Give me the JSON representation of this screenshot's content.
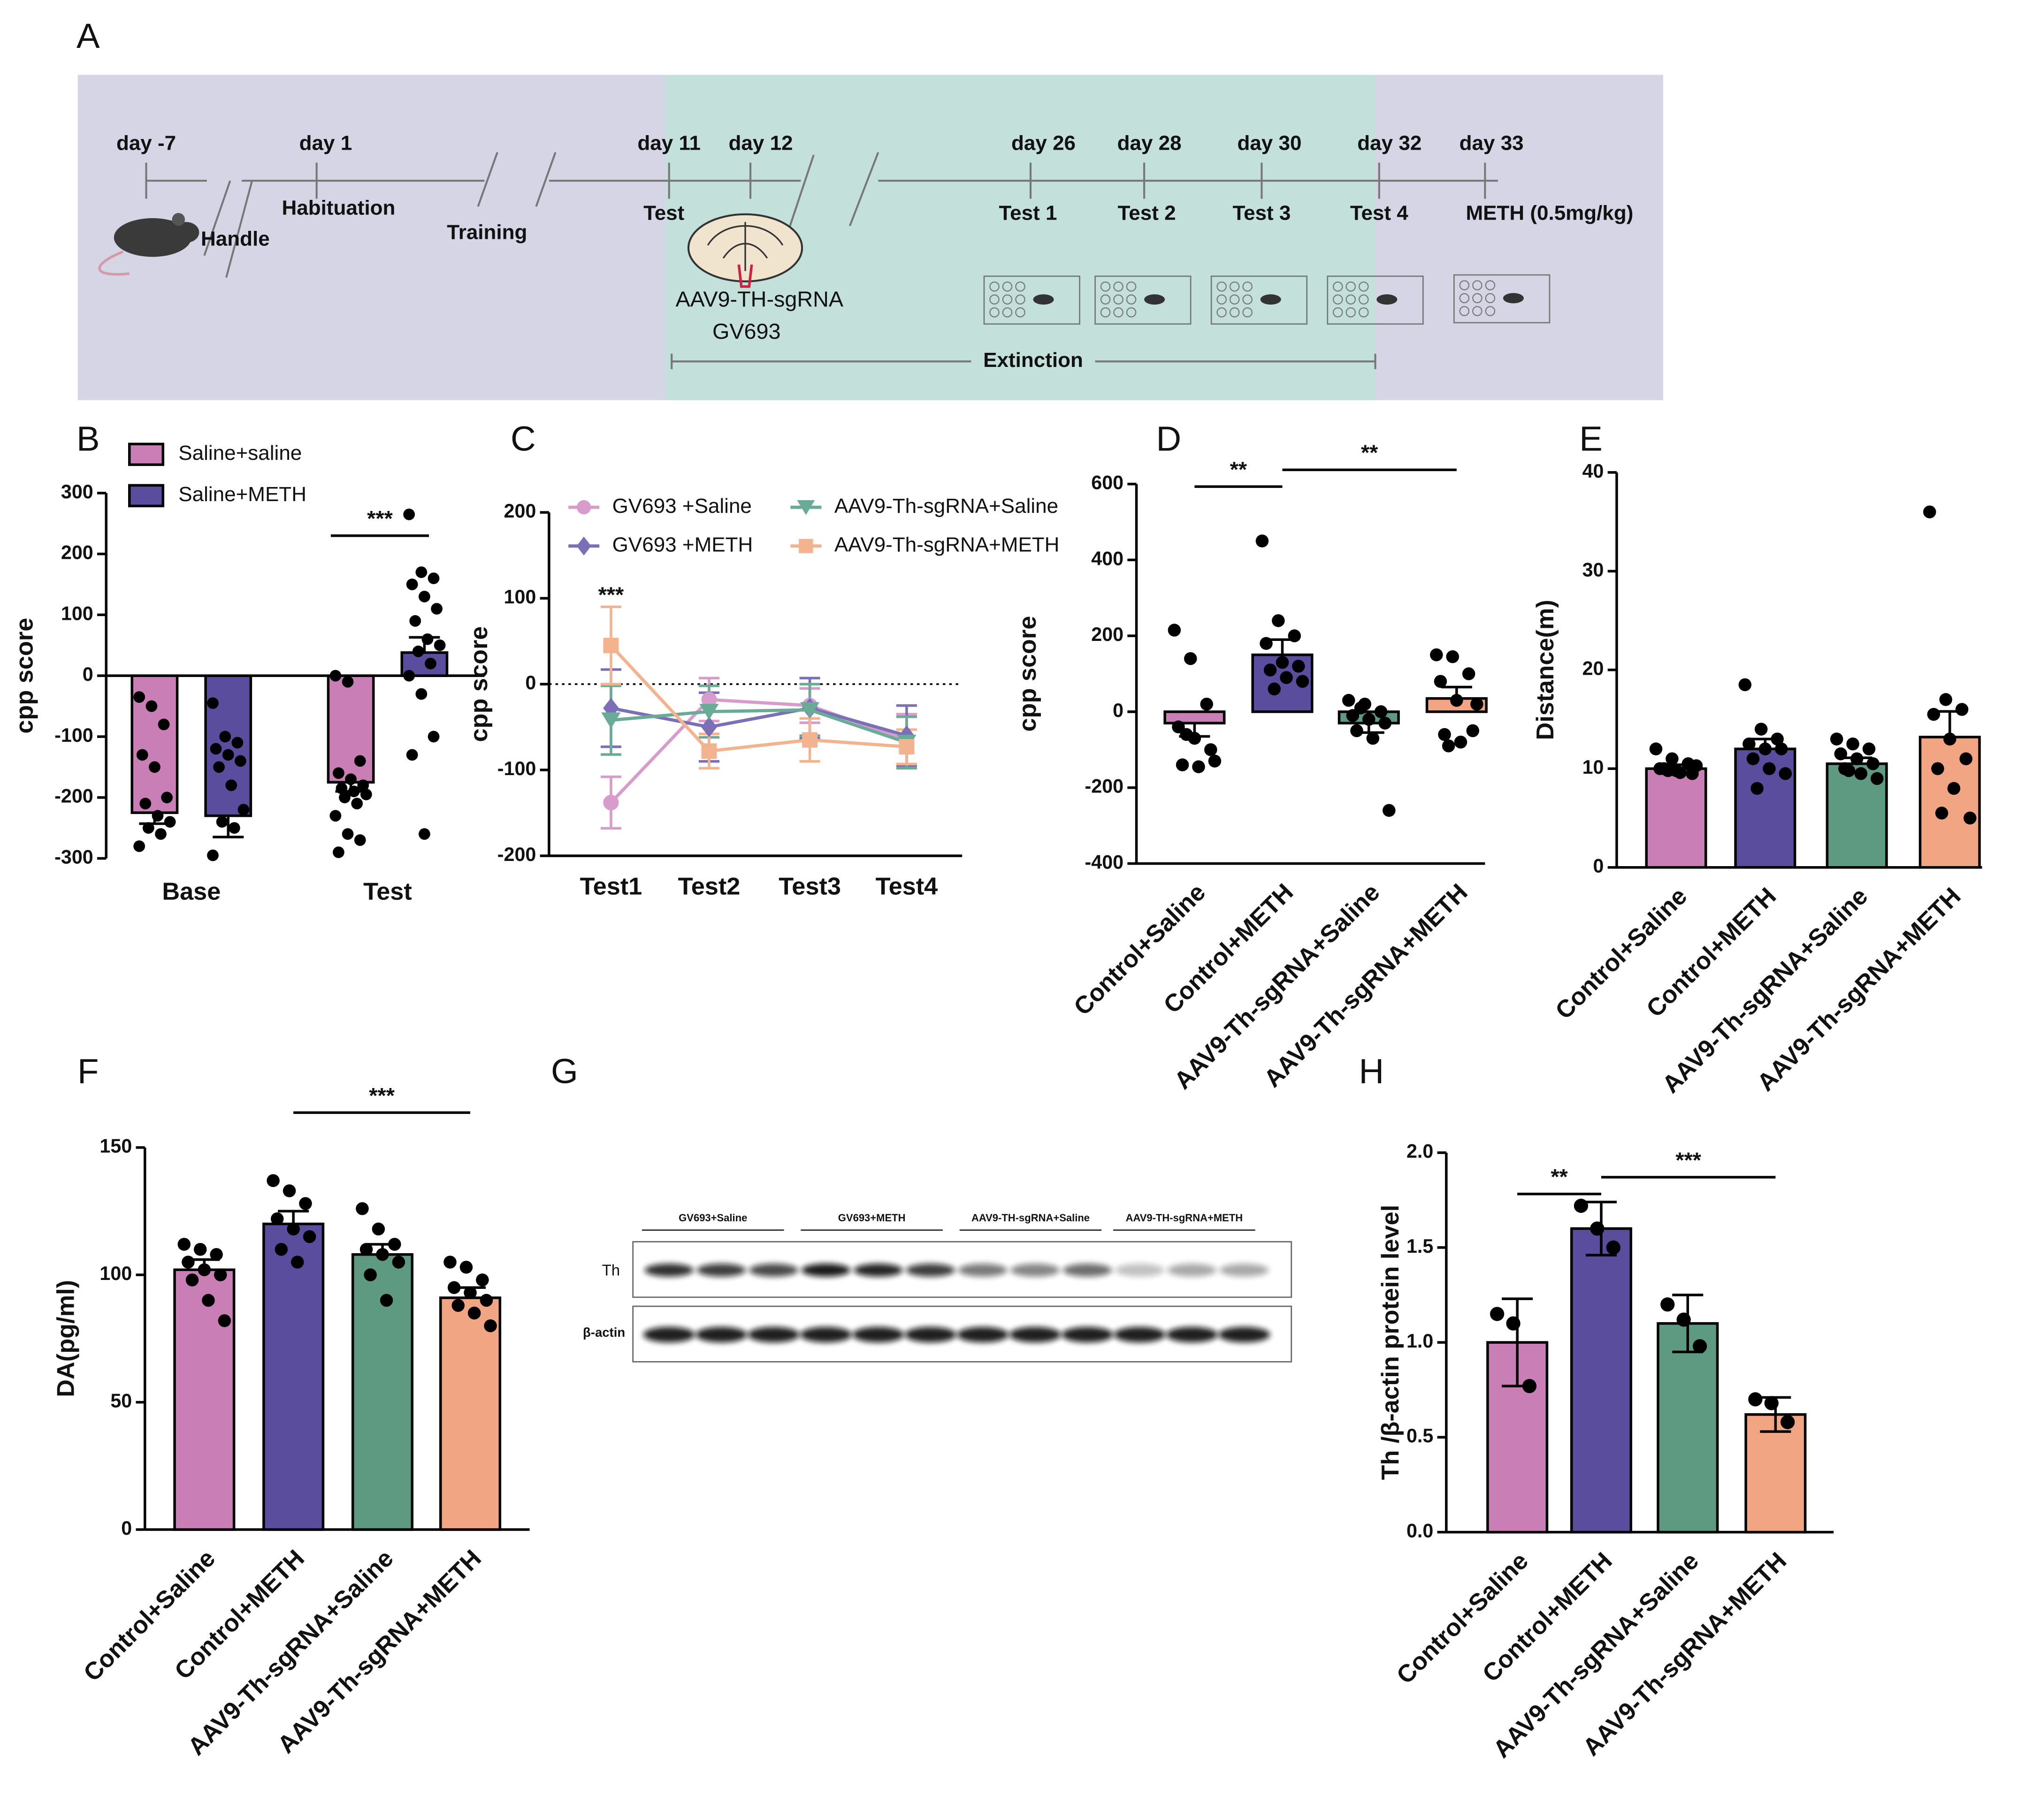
{
  "panel_labels": [
    "A",
    "B",
    "C",
    "D",
    "E",
    "F",
    "G",
    "H"
  ],
  "timeline": {
    "days": [
      "day -7",
      "day 1",
      "day 11",
      "day 12",
      "day 26",
      "day 28",
      "day 30",
      "day 32",
      "day 33"
    ],
    "events": [
      "Handle",
      "Habituation",
      "Training",
      "Test",
      "Test 1",
      "Test 2",
      "Test 3",
      "Test 4",
      "METH (0.5mg/kg)"
    ],
    "injection": [
      "AAV9-TH-sgRNA",
      "GV693"
    ],
    "phase": "Extinction"
  },
  "blot": {
    "groups": [
      "GV693+Saline",
      "GV693+METH",
      "AAV9-TH-sgRNA+Saline",
      "AAV9-TH-sgRNA+METH"
    ],
    "rows": [
      "Th",
      "β-actin"
    ]
  },
  "chart_data": [
    {
      "type": "bar",
      "ylabel": "cpp score",
      "categories": [
        "Base",
        "Test"
      ],
      "x_axis_at_zero": true,
      "series": [
        {
          "name": "Saline+saline",
          "color": "#c97fb6",
          "values": [
            -225,
            -175
          ],
          "errors": [
            18,
            15
          ],
          "points": [
            [
              -35,
              -50,
              -80,
              -130,
              -150,
              -200,
              -210,
              -230,
              -240,
              -250,
              -260,
              -280
            ],
            [
              0,
              -10,
              -140,
              -160,
              -170,
              -180,
              -185,
              -190,
              -195,
              -200,
              -210,
              -230,
              -260,
              -270,
              -290
            ]
          ]
        },
        {
          "name": "Saline+METH",
          "color": "#5a4d9d",
          "values": [
            -230,
            38
          ],
          "errors": [
            35,
            25
          ],
          "points": [
            [
              -45,
              -100,
              -110,
              -120,
              -130,
              -140,
              -150,
              -180,
              -220,
              -240,
              -250,
              -295
            ],
            [
              265,
              170,
              160,
              150,
              130,
              110,
              90,
              60,
              50,
              40,
              20,
              0,
              -30,
              -100,
              -130,
              -260
            ]
          ]
        }
      ],
      "ylim": [
        -300,
        300
      ],
      "yticks": [
        -300,
        -200,
        -100,
        0,
        100,
        200,
        300
      ],
      "annotations": [
        {
          "text": "***",
          "category": "Test"
        }
      ]
    },
    {
      "type": "line",
      "ylabel": "cpp score",
      "categories": [
        "Test1",
        "Test2",
        "Test3",
        "Test4"
      ],
      "zero_line": "dotted",
      "series": [
        {
          "name": "GV693 +Saline",
          "color": "#d79ccb",
          "marker": "circle",
          "values": [
            -138,
            -18,
            -25,
            -65
          ],
          "errors": [
            30,
            25,
            20,
            30
          ]
        },
        {
          "name": "GV693 +METH",
          "color": "#7b6fb7",
          "marker": "diamond",
          "values": [
            -28,
            -50,
            -28,
            -60
          ],
          "errors": [
            45,
            40,
            35,
            35
          ]
        },
        {
          "name": "AAV9-Th-sgRNA+Saline",
          "color": "#6aab98",
          "marker": "triangle-down",
          "values": [
            -42,
            -32,
            -30,
            -68
          ],
          "errors": [
            40,
            30,
            30,
            30
          ]
        },
        {
          "name": "AAV9-Th-sgRNA+METH",
          "color": "#f3b38f",
          "marker": "square",
          "values": [
            45,
            -78,
            -65,
            -73
          ],
          "errors": [
            45,
            20,
            25,
            20
          ]
        }
      ],
      "ylim": [
        -200,
        200
      ],
      "yticks": [
        -200,
        -100,
        0,
        100,
        200
      ],
      "annotations": [
        {
          "text": "***",
          "category": "Test1"
        }
      ]
    },
    {
      "type": "bar",
      "ylabel": "cpp score",
      "categories": [
        "Control+Saline",
        "Control+METH",
        "AAV9-Th-sgRNA+Saline",
        "AAV9-Th-sgRNA+METH"
      ],
      "colors": [
        "#c97fb6",
        "#5a4d9d",
        "#5e9a82",
        "#f2a582"
      ],
      "values": [
        -30,
        150,
        -30,
        35
      ],
      "errors": [
        35,
        40,
        25,
        30
      ],
      "points": [
        [
          215,
          140,
          20,
          -40,
          -70,
          -100,
          -140,
          -145,
          -130,
          -60
        ],
        [
          450,
          240,
          200,
          180,
          130,
          120,
          110,
          90,
          80,
          60
        ],
        [
          30,
          20,
          0,
          -10,
          -20,
          -30,
          -50,
          -70,
          -260,
          10
        ],
        [
          150,
          145,
          100,
          80,
          30,
          -50,
          -60,
          -80,
          20,
          -90
        ]
      ],
      "ylim": [
        -400,
        600
      ],
      "yticks": [
        -400,
        -200,
        0,
        200,
        400,
        600
      ],
      "annotations": [
        {
          "text": "**",
          "between": [
            "Control+Saline",
            "Control+METH"
          ]
        },
        {
          "text": "**",
          "between": [
            "Control+METH",
            "AAV9-Th-sgRNA+METH"
          ]
        }
      ]
    },
    {
      "type": "bar",
      "ylabel": "Distance(m)",
      "categories": [
        "Control+Saline",
        "Control+METH",
        "AAV9-Th-sgRNA+Saline",
        "AAV9-Th-sgRNA+METH"
      ],
      "colors": [
        "#c97fb6",
        "#5a4d9d",
        "#5e9a82",
        "#f2a582"
      ],
      "values": [
        10,
        12,
        10.5,
        13.2
      ],
      "errors": [
        0.4,
        1,
        0.6,
        2.6
      ],
      "points": [
        [
          12,
          11,
          10.5,
          10,
          9.8,
          9.5,
          10,
          9.6,
          10.3,
          9.8
        ],
        [
          18.5,
          14,
          13,
          12.5,
          12,
          12,
          11,
          10,
          9.5,
          8
        ],
        [
          13,
          12.5,
          12,
          11.5,
          11,
          10.5,
          10,
          9.5,
          9,
          9.8
        ],
        [
          36,
          17,
          16,
          15.5,
          13,
          11,
          10,
          8,
          5,
          5.5
        ]
      ],
      "ylim": [
        0,
        40
      ],
      "yticks": [
        0,
        10,
        20,
        30,
        40
      ]
    },
    {
      "type": "bar",
      "ylabel": "DA(pg/ml)",
      "categories": [
        "Control+Saline",
        "Control+METH",
        "AAV9-Th-sgRNA+Saline",
        "AAV9-Th-sgRNA+METH"
      ],
      "colors": [
        "#c97fb6",
        "#5a4d9d",
        "#5e9a82",
        "#f2a582"
      ],
      "values": [
        102,
        120,
        108,
        91
      ],
      "errors": [
        4,
        5,
        4,
        4
      ],
      "points": [
        [
          112,
          110,
          108,
          105,
          102,
          100,
          98,
          90,
          82
        ],
        [
          137,
          133,
          128,
          122,
          118,
          115,
          110,
          105
        ],
        [
          126,
          118,
          112,
          110,
          108,
          105,
          100,
          90
        ],
        [
          105,
          103,
          98,
          95,
          93,
          90,
          88,
          85,
          80
        ]
      ],
      "ylim": [
        0,
        150
      ],
      "yticks": [
        0,
        50,
        100,
        150
      ],
      "annotations": [
        {
          "text": "***",
          "between": [
            "Control+METH",
            "AAV9-Th-sgRNA+METH"
          ]
        }
      ]
    },
    {
      "type": "bar",
      "ylabel": "Th /β-actin protein level",
      "error_bars": "both",
      "categories": [
        "Control+Saline",
        "Control+METH",
        "AAV9-Th-sgRNA+Saline",
        "AAV9-Th-sgRNA+METH"
      ],
      "colors": [
        "#c97fb6",
        "#5a4d9d",
        "#5e9a82",
        "#f2a582"
      ],
      "values": [
        1.0,
        1.6,
        1.1,
        0.62
      ],
      "errors": [
        0.23,
        0.14,
        0.15,
        0.09
      ],
      "points": [
        [
          1.15,
          1.1,
          0.77
        ],
        [
          1.72,
          1.6,
          1.5
        ],
        [
          1.2,
          1.12,
          0.98
        ],
        [
          0.7,
          0.68,
          0.58
        ]
      ],
      "ylim": [
        0,
        2
      ],
      "yticks": [
        {
          "value": 0,
          "label": "0.0"
        },
        {
          "value": 0.5,
          "label": "0.5"
        },
        {
          "value": 1,
          "label": "1.0"
        },
        {
          "value": 1.5,
          "label": "1.5"
        },
        {
          "value": 2,
          "label": "2.0"
        }
      ],
      "annotations": [
        {
          "text": "**",
          "between": [
            "Control+Saline",
            "Control+METH"
          ]
        },
        {
          "text": "***",
          "between": [
            "Control+METH",
            "AAV9-Th-sgRNA+METH"
          ]
        }
      ]
    }
  ]
}
